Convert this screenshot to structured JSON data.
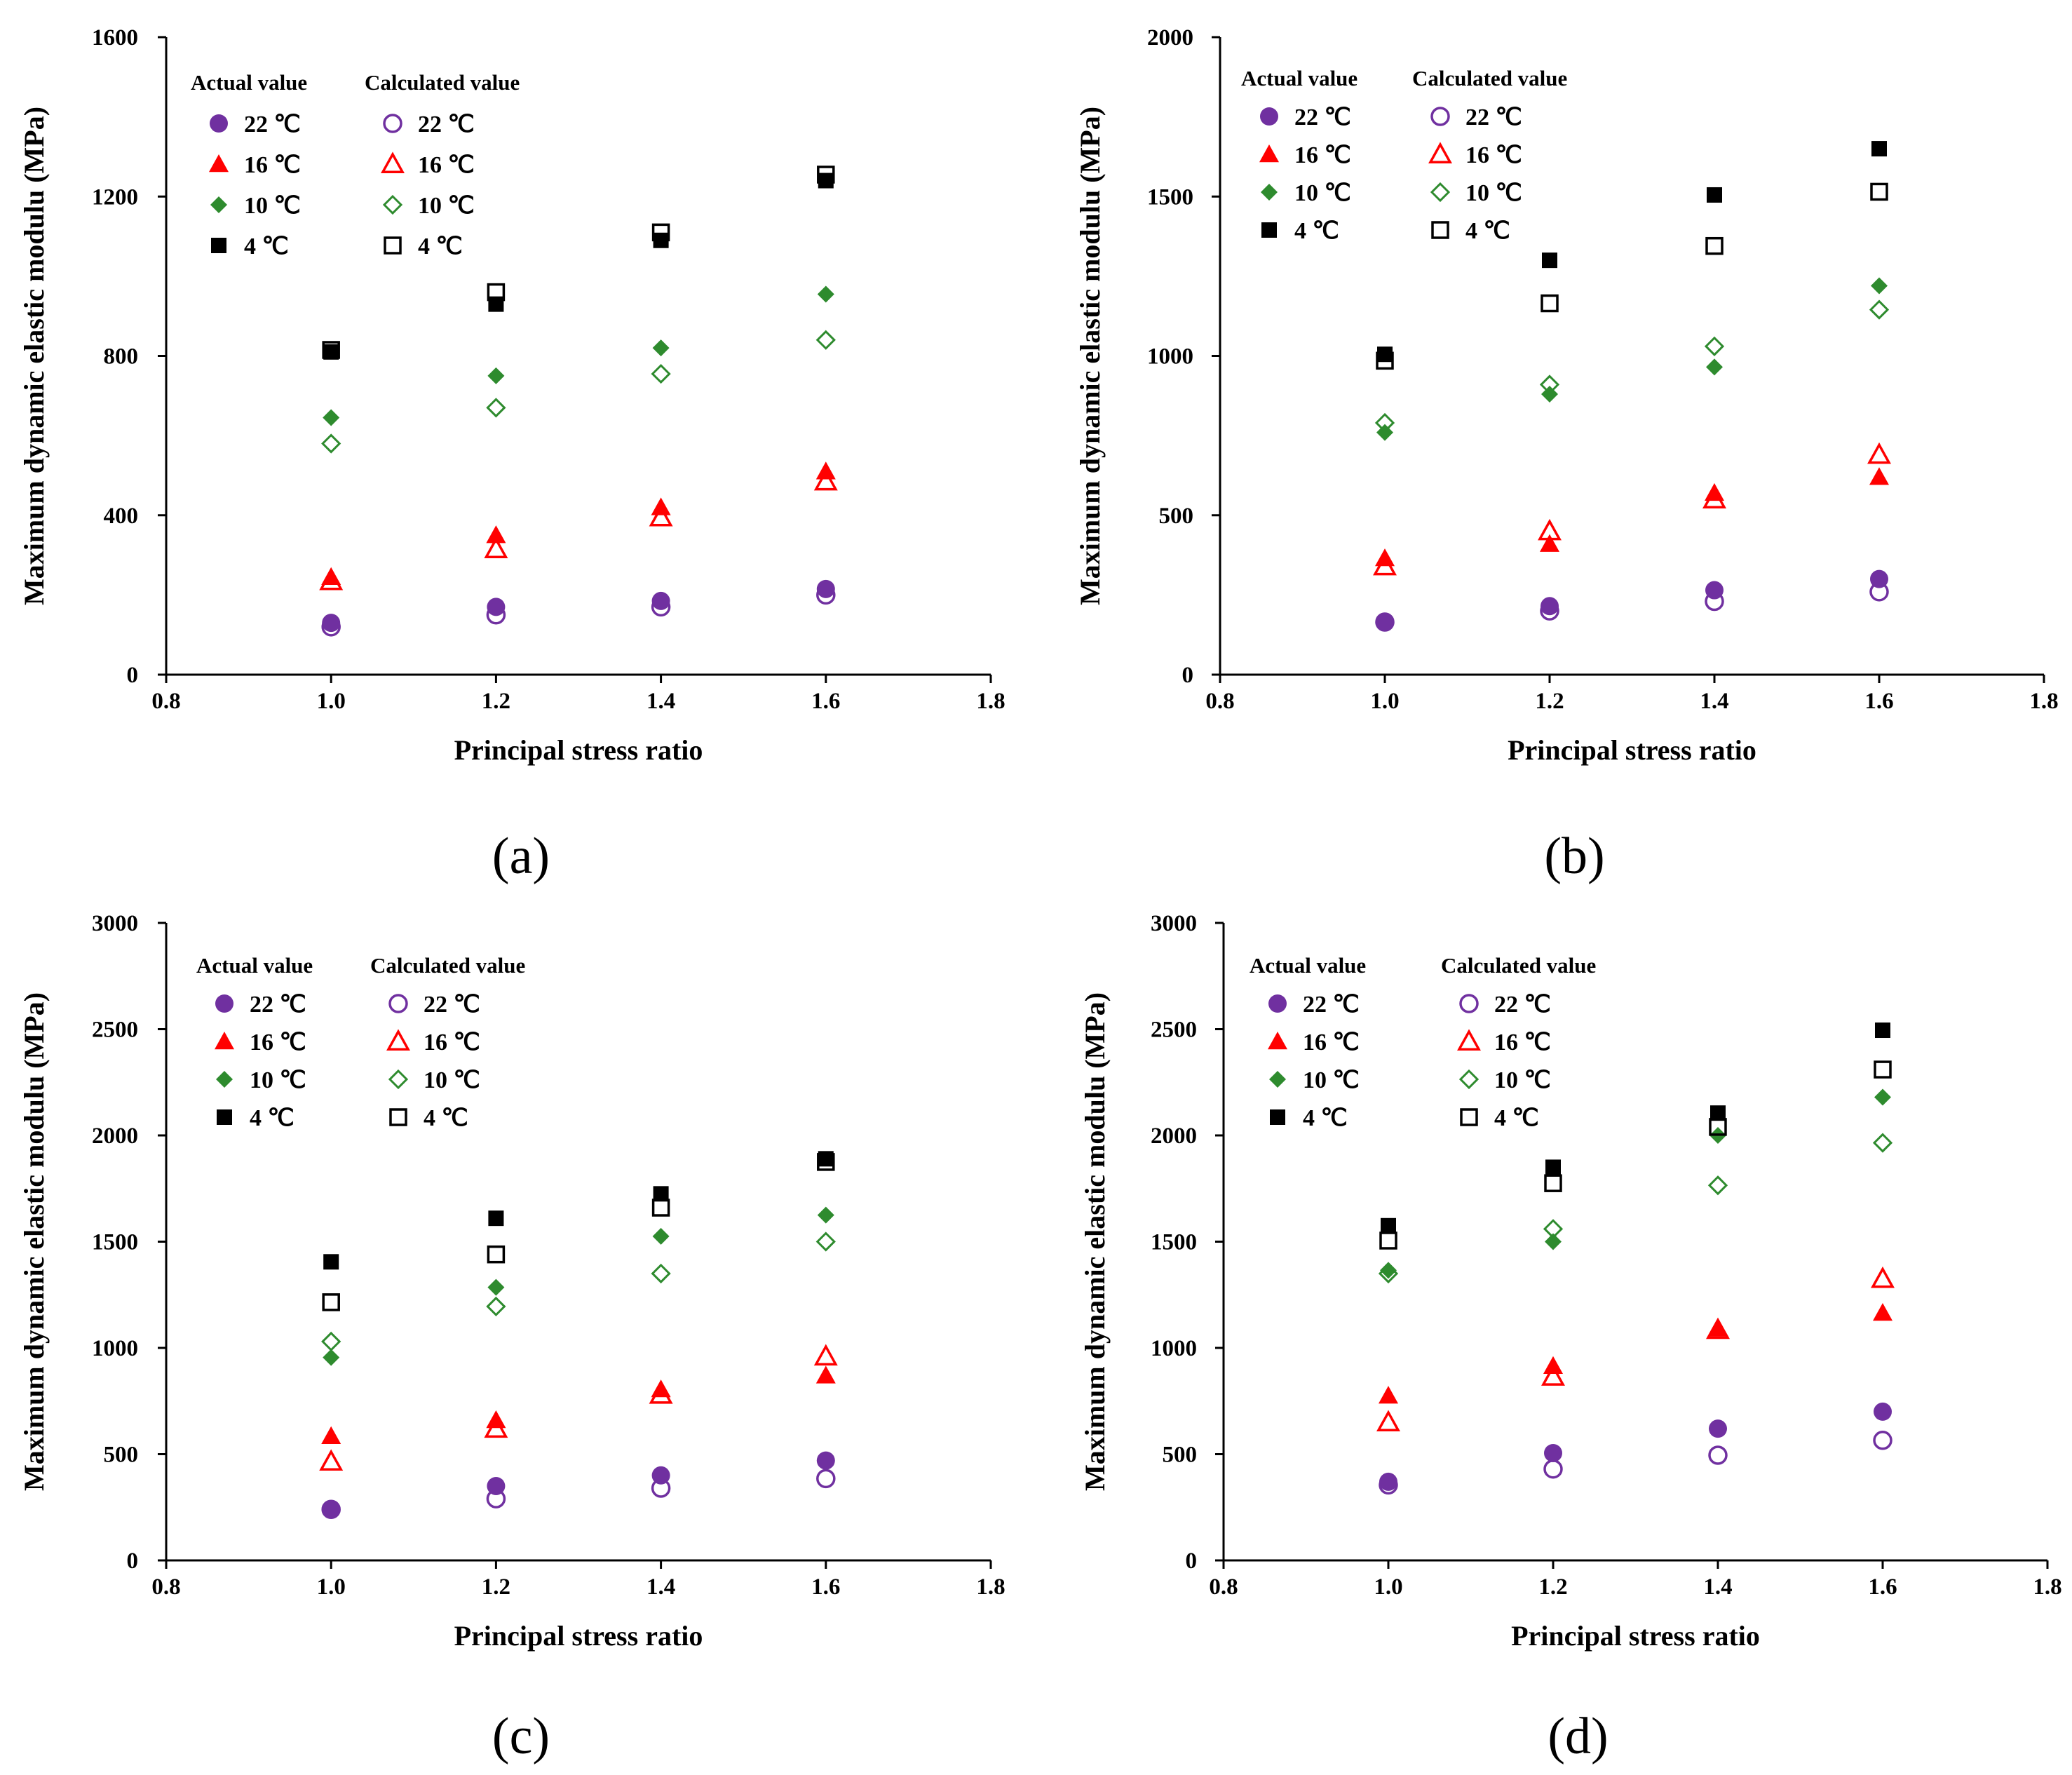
{
  "figure": {
    "xlabel": "Principal stress ratio",
    "ylabel": "Maximum dynamic elastic modulu (MPa)",
    "legend_actual_title": "Actual value",
    "legend_calc_title": "Calculated value",
    "temperatures": [
      "22 ℃",
      "16 ℃",
      "10 ℃",
      "4 ℃"
    ],
    "colors": {
      "22": "#7030a0",
      "16": "#ff0000",
      "10": "#2e8b2e",
      "4": "#000000"
    },
    "markers": {
      "22": "circle",
      "16": "triangle",
      "10": "diamond",
      "4": "square"
    }
  },
  "chart_data": [
    {
      "panel": "(a)",
      "type": "scatter",
      "xlabel": "Principal stress ratio",
      "ylabel": "Maximum dynamic elastic modulu (MPa)",
      "xlim": [
        0.8,
        1.8
      ],
      "xticks": [
        "0.8",
        "1.0",
        "1.2",
        "1.4",
        "1.6",
        "1.8"
      ],
      "ylim": [
        0,
        1600
      ],
      "yticks": [
        "0",
        "400",
        "800",
        "1200",
        "1600"
      ],
      "x": [
        1.0,
        1.2,
        1.4,
        1.6
      ],
      "series": [
        {
          "name": "Actual value 22 ℃",
          "temp": "22",
          "kind": "actual",
          "values": [
            130,
            170,
            185,
            215
          ]
        },
        {
          "name": "Calculated value 22 ℃",
          "temp": "22",
          "kind": "calculated",
          "values": [
            120,
            150,
            170,
            200
          ]
        },
        {
          "name": "Actual value 16 ℃",
          "temp": "16",
          "kind": "actual",
          "values": [
            245,
            350,
            420,
            510
          ]
        },
        {
          "name": "Calculated value 16 ℃",
          "temp": "16",
          "kind": "calculated",
          "values": [
            235,
            315,
            395,
            485
          ]
        },
        {
          "name": "Actual value 10 ℃",
          "temp": "10",
          "kind": "actual",
          "values": [
            645,
            750,
            820,
            955
          ]
        },
        {
          "name": "Calculated value 10 ℃",
          "temp": "10",
          "kind": "calculated",
          "values": [
            580,
            670,
            755,
            840
          ]
        },
        {
          "name": "Actual value 4 ℃",
          "temp": "4",
          "kind": "actual",
          "values": [
            810,
            930,
            1090,
            1240
          ]
        },
        {
          "name": "Calculated value 4 ℃",
          "temp": "4",
          "kind": "calculated",
          "values": [
            815,
            960,
            1110,
            1255
          ]
        }
      ]
    },
    {
      "panel": "(b)",
      "type": "scatter",
      "xlabel": "Principal stress ratio",
      "ylabel": "Maximum dynamic elastic modulu (MPa)",
      "xlim": [
        0.8,
        1.8
      ],
      "xticks": [
        "0.8",
        "1.0",
        "1.2",
        "1.4",
        "1.6",
        "1.8"
      ],
      "ylim": [
        0,
        2000
      ],
      "yticks": [
        "0",
        "500",
        "1000",
        "1500",
        "2000"
      ],
      "x": [
        1.0,
        1.2,
        1.4,
        1.6
      ],
      "series": [
        {
          "name": "Actual value 22 ℃",
          "temp": "22",
          "kind": "actual",
          "values": [
            165,
            215,
            265,
            300
          ]
        },
        {
          "name": "Calculated value 22 ℃",
          "temp": "22",
          "kind": "calculated",
          "values": [
            165,
            200,
            230,
            260
          ]
        },
        {
          "name": "Actual value 16 ℃",
          "temp": "16",
          "kind": "actual",
          "values": [
            365,
            410,
            570,
            620
          ]
        },
        {
          "name": "Calculated value 16 ℃",
          "temp": "16",
          "kind": "calculated",
          "values": [
            340,
            450,
            550,
            690
          ]
        },
        {
          "name": "Actual value 10 ℃",
          "temp": "10",
          "kind": "actual",
          "values": [
            760,
            880,
            965,
            1220
          ]
        },
        {
          "name": "Calculated value 10 ℃",
          "temp": "10",
          "kind": "calculated",
          "values": [
            790,
            910,
            1030,
            1145
          ]
        },
        {
          "name": "Actual value 4 ℃",
          "temp": "4",
          "kind": "actual",
          "values": [
            1005,
            1300,
            1505,
            1650
          ]
        },
        {
          "name": "Calculated value 4 ℃",
          "temp": "4",
          "kind": "calculated",
          "values": [
            985,
            1165,
            1345,
            1515
          ]
        }
      ]
    },
    {
      "panel": "(c)",
      "type": "scatter",
      "xlabel": "Principal stress ratio",
      "ylabel": "Maximum dynamic elastic modulu (MPa)",
      "xlim": [
        0.8,
        1.8
      ],
      "xticks": [
        "0.8",
        "1.0",
        "1.2",
        "1.4",
        "1.6",
        "1.8"
      ],
      "ylim": [
        0,
        3000
      ],
      "yticks": [
        "0",
        "500",
        "1000",
        "1500",
        "2000",
        "2500",
        "3000"
      ],
      "x": [
        1.0,
        1.2,
        1.4,
        1.6
      ],
      "series": [
        {
          "name": "Actual value 22 ℃",
          "temp": "22",
          "kind": "actual",
          "values": [
            240,
            350,
            400,
            470
          ]
        },
        {
          "name": "Calculated value 22 ℃",
          "temp": "22",
          "kind": "calculated",
          "values": [
            240,
            290,
            340,
            385
          ]
        },
        {
          "name": "Actual value 16 ℃",
          "temp": "16",
          "kind": "actual",
          "values": [
            585,
            660,
            805,
            870
          ]
        },
        {
          "name": "Calculated value 16 ℃",
          "temp": "16",
          "kind": "calculated",
          "values": [
            465,
            620,
            780,
            960
          ]
        },
        {
          "name": "Actual value 10 ℃",
          "temp": "10",
          "kind": "actual",
          "values": [
            955,
            1285,
            1525,
            1625
          ]
        },
        {
          "name": "Calculated value 10 ℃",
          "temp": "10",
          "kind": "calculated",
          "values": [
            1030,
            1195,
            1350,
            1500
          ]
        },
        {
          "name": "Actual value 4 ℃",
          "temp": "4",
          "kind": "actual",
          "values": [
            1405,
            1610,
            1725,
            1890
          ]
        },
        {
          "name": "Calculated value 4 ℃",
          "temp": "4",
          "kind": "calculated",
          "values": [
            1215,
            1440,
            1660,
            1875
          ]
        }
      ]
    },
    {
      "panel": "(d)",
      "type": "scatter",
      "xlabel": "Principal stress ratio",
      "ylabel": "Maximum dynamic elastic modulu (MPa)",
      "xlim": [
        0.8,
        1.8
      ],
      "xticks": [
        "0.8",
        "1.0",
        "1.2",
        "1.4",
        "1.6",
        "1.8"
      ],
      "ylim": [
        0,
        3000
      ],
      "yticks": [
        "0",
        "500",
        "1000",
        "1500",
        "2000",
        "2500",
        "3000"
      ],
      "x": [
        1.0,
        1.2,
        1.4,
        1.6
      ],
      "series": [
        {
          "name": "Actual value 22 ℃",
          "temp": "22",
          "kind": "actual",
          "values": [
            370,
            505,
            620,
            700
          ]
        },
        {
          "name": "Calculated value 22 ℃",
          "temp": "22",
          "kind": "calculated",
          "values": [
            355,
            430,
            495,
            565
          ]
        },
        {
          "name": "Actual value 16 ℃",
          "temp": "16",
          "kind": "actual",
          "values": [
            775,
            915,
            1090,
            1165
          ]
        },
        {
          "name": "Calculated value 16 ℃",
          "temp": "16",
          "kind": "calculated",
          "values": [
            650,
            865,
            1085,
            1325
          ]
        },
        {
          "name": "Actual value 10 ℃",
          "temp": "10",
          "kind": "actual",
          "values": [
            1365,
            1500,
            2000,
            2180
          ]
        },
        {
          "name": "Calculated value 10 ℃",
          "temp": "10",
          "kind": "calculated",
          "values": [
            1350,
            1560,
            1765,
            1965
          ]
        },
        {
          "name": "Actual value 4 ℃",
          "temp": "4",
          "kind": "actual",
          "values": [
            1575,
            1850,
            2105,
            2495
          ]
        },
        {
          "name": "Calculated value 4 ℃",
          "temp": "4",
          "kind": "calculated",
          "values": [
            1505,
            1775,
            2040,
            2310
          ]
        }
      ]
    }
  ]
}
